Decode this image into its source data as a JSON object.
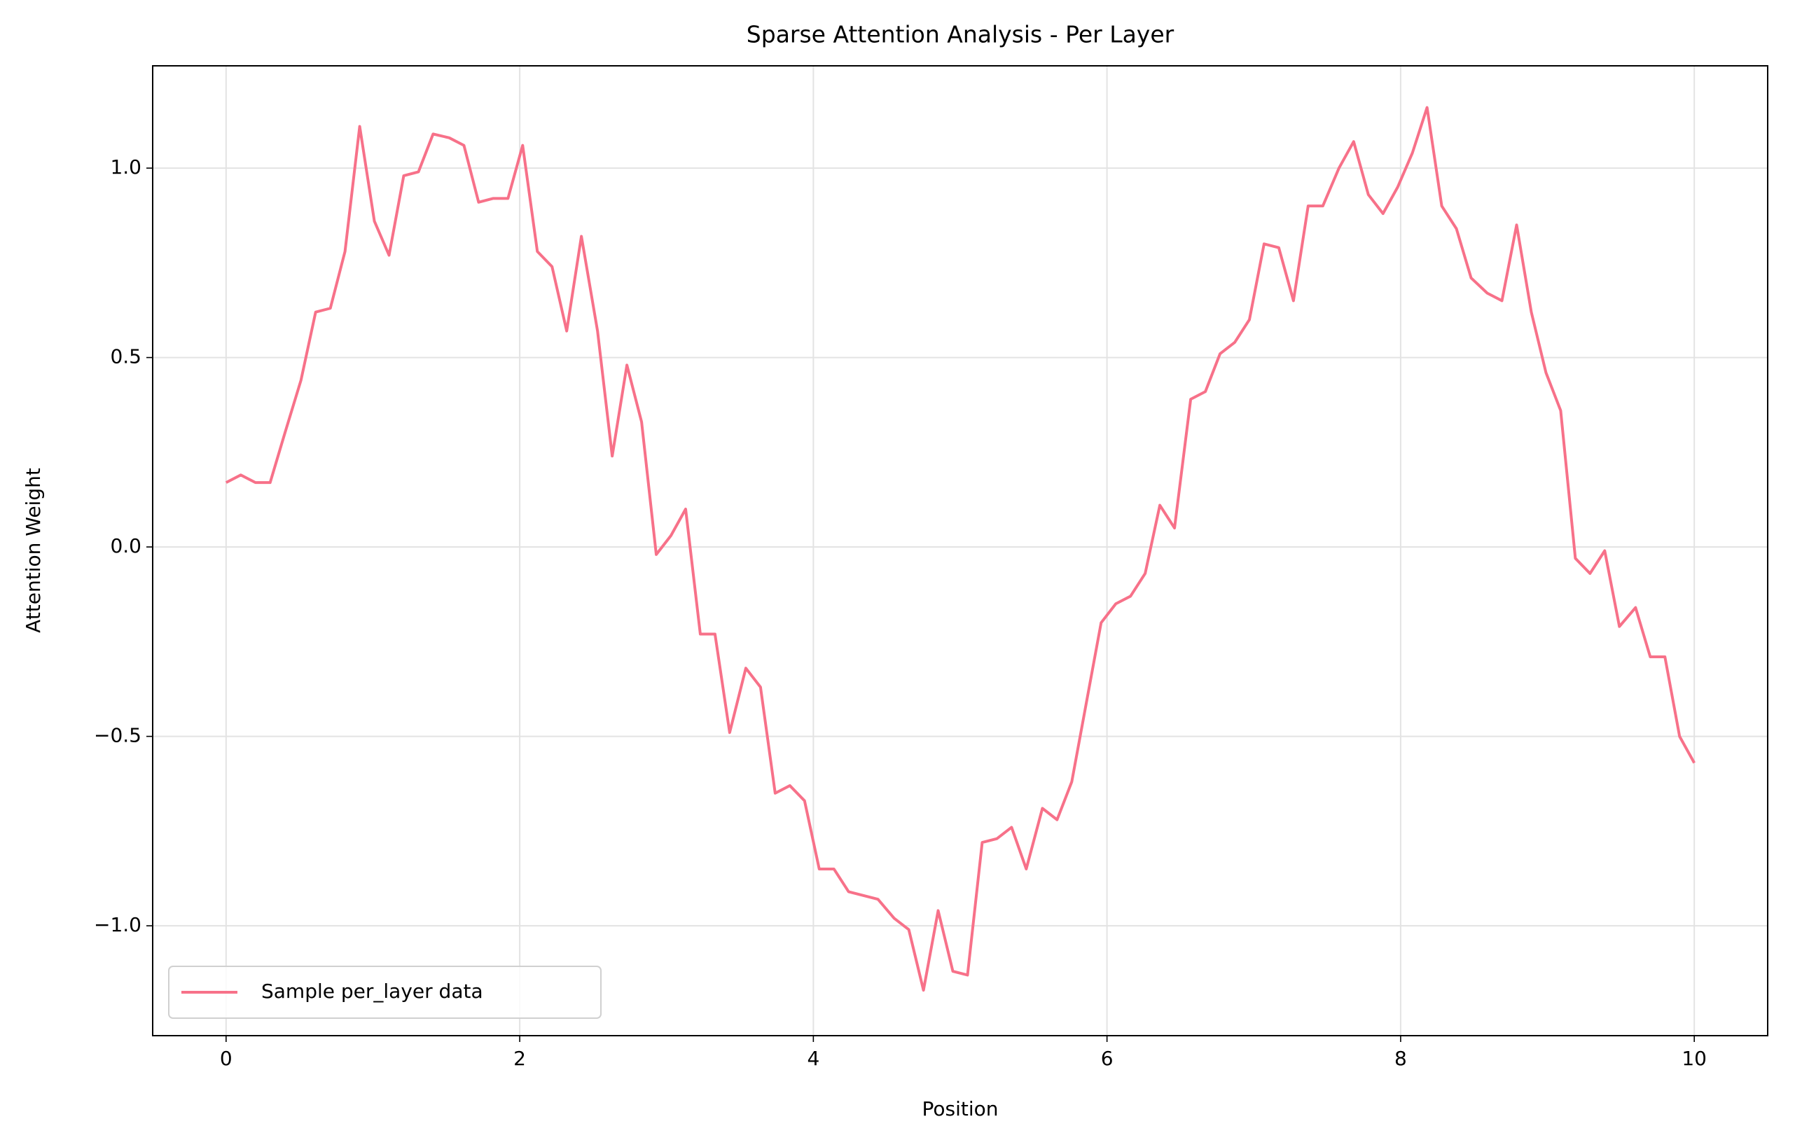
{
  "chart_data": {
    "type": "line",
    "title": "Sparse Attention Analysis - Per Layer",
    "x_label": "Position",
    "y_label": "Attention Weight",
    "x": [
      0,
      0.1,
      0.2,
      0.3,
      0.4,
      0.51,
      0.61,
      0.71,
      0.81,
      0.91,
      1.01,
      1.11,
      1.21,
      1.31,
      1.41,
      1.52,
      1.62,
      1.72,
      1.82,
      1.92,
      2.02,
      2.12,
      2.22,
      2.32,
      2.42,
      2.53,
      2.63,
      2.73,
      2.83,
      2.93,
      3.03,
      3.13,
      3.23,
      3.33,
      3.43,
      3.54,
      3.64,
      3.74,
      3.84,
      3.94,
      4.04,
      4.14,
      4.24,
      4.34,
      4.44,
      4.55,
      4.65,
      4.75,
      4.85,
      4.95,
      5.05,
      5.15,
      5.25,
      5.35,
      5.45,
      5.56,
      5.66,
      5.76,
      5.86,
      5.96,
      6.06,
      6.16,
      6.26,
      6.36,
      6.46,
      6.57,
      6.67,
      6.77,
      6.87,
      6.97,
      7.07,
      7.17,
      7.27,
      7.37,
      7.47,
      7.58,
      7.68,
      7.78,
      7.88,
      7.98,
      8.08,
      8.18,
      8.28,
      8.38,
      8.48,
      8.59,
      8.69,
      8.79,
      8.89,
      8.99,
      9.09,
      9.19,
      9.29,
      9.39,
      9.49,
      9.6,
      9.7,
      9.8,
      9.9,
      10
    ],
    "series": [
      {
        "name": "Sample per_layer data",
        "color": "#f77189",
        "values": [
          0.17,
          0.19,
          0.17,
          0.17,
          0.3,
          0.44,
          0.62,
          0.63,
          0.78,
          1.11,
          0.86,
          0.77,
          0.98,
          0.99,
          1.09,
          1.08,
          1.06,
          0.91,
          0.92,
          0.92,
          1.06,
          0.78,
          0.74,
          0.57,
          0.82,
          0.57,
          0.24,
          0.48,
          0.33,
          -0.02,
          0.03,
          0.1,
          -0.23,
          -0.23,
          -0.49,
          -0.32,
          -0.37,
          -0.65,
          -0.63,
          -0.67,
          -0.85,
          -0.85,
          -0.91,
          -0.92,
          -0.93,
          -0.98,
          -1.01,
          -1.17,
          -0.96,
          -1.12,
          -1.13,
          -0.78,
          -0.77,
          -0.74,
          -0.85,
          -0.69,
          -0.72,
          -0.62,
          -0.41,
          -0.2,
          -0.15,
          -0.13,
          -0.07,
          0.11,
          0.05,
          0.39,
          0.41,
          0.51,
          0.54,
          0.6,
          0.8,
          0.79,
          0.65,
          0.9,
          0.9,
          1.0,
          1.07,
          0.93,
          0.88,
          0.95,
          1.04,
          1.16,
          0.9,
          0.84,
          0.71,
          0.67,
          0.65,
          0.85,
          0.62,
          0.46,
          0.36,
          -0.03,
          -0.07,
          -0.01,
          -0.21,
          -0.16,
          -0.29,
          -0.29,
          -0.5,
          -0.57
        ]
      }
    ],
    "xlim": [
      -0.5,
      10.5
    ],
    "xticks": [
      0,
      2,
      4,
      6,
      8,
      10
    ],
    "ylim": [
      -1.29,
      1.27
    ],
    "yticks": [
      {
        "value": -1.0,
        "label": "−1.0"
      },
      {
        "value": -0.5,
        "label": "−0.5"
      },
      {
        "value": 0.0,
        "label": "0.0"
      },
      {
        "value": 0.5,
        "label": "0.5"
      },
      {
        "value": 1.0,
        "label": "1.0"
      }
    ],
    "grid": true,
    "legend": "lower left"
  }
}
